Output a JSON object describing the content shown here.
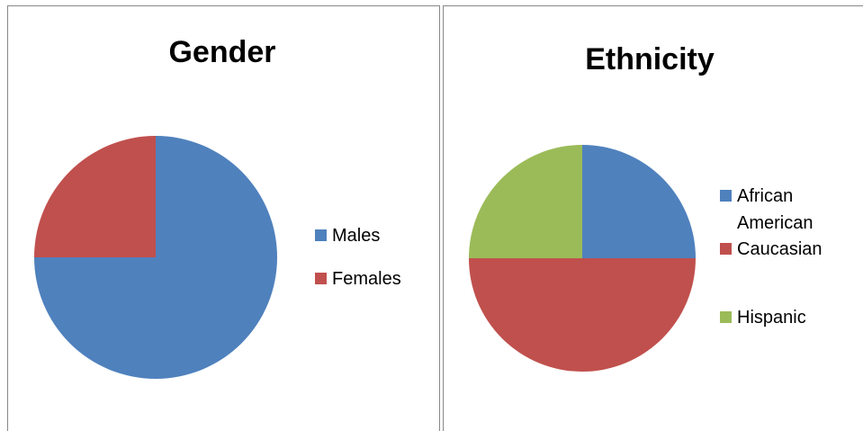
{
  "chart_data": [
    {
      "type": "pie",
      "title": "Gender",
      "categories": [
        "Males",
        "Females"
      ],
      "values": [
        75,
        25
      ],
      "colors": [
        "#4f81bd",
        "#c0504d"
      ],
      "legend": "right"
    },
    {
      "type": "pie",
      "title": "Ethnicity",
      "categories": [
        "African American",
        "Caucasian",
        "Hispanic"
      ],
      "values": [
        25,
        50,
        25
      ],
      "colors": [
        "#4f81bd",
        "#c0504d",
        "#9bbb59"
      ],
      "legend": "right"
    }
  ]
}
